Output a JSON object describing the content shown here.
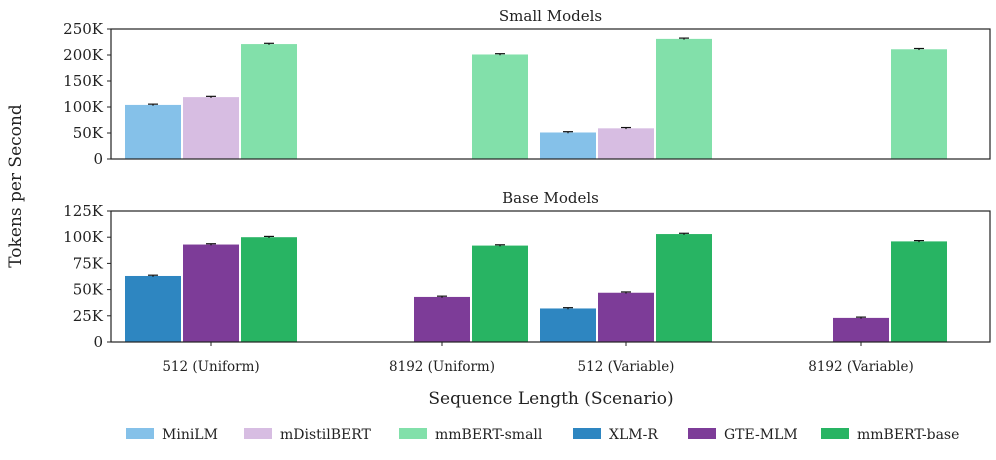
{
  "chart_data": {
    "type": "bar",
    "ylabel": "Tokens per Second",
    "xlabel": "Sequence Length (Scenario)",
    "categories": [
      "512 (Uniform)",
      "8192 (Uniform)",
      "512 (Variable)",
      "8192 (Variable)"
    ],
    "legend": [
      {
        "name": "MiniLM",
        "color": "#85c1e9"
      },
      {
        "name": "mDistilBERT",
        "color": "#d7bde2"
      },
      {
        "name": "mmBERT-small",
        "color": "#82e0aa"
      },
      {
        "name": "XLM-R",
        "color": "#2e86c1"
      },
      {
        "name": "GTE-MLM",
        "color": "#7d3c98"
      },
      {
        "name": "mmBERT-base",
        "color": "#28b463"
      }
    ],
    "panels": [
      {
        "title": "Small Models",
        "ylim": [
          0,
          250000
        ],
        "yticks": [
          0,
          50000,
          100000,
          150000,
          200000,
          250000
        ],
        "ytick_labels": [
          "0",
          "50K",
          "100K",
          "150K",
          "200K",
          "250K"
        ],
        "series": [
          {
            "name": "MiniLM",
            "color": "#85c1e9",
            "values": [
              104000,
              null,
              51000,
              null
            ]
          },
          {
            "name": "mDistilBERT",
            "color": "#d7bde2",
            "values": [
              119000,
              null,
              59000,
              null
            ]
          },
          {
            "name": "mmBERT-small",
            "color": "#82e0aa",
            "values": [
              221000,
              201000,
              231000,
              211000
            ]
          }
        ]
      },
      {
        "title": "Base Models",
        "ylim": [
          0,
          125000
        ],
        "yticks": [
          0,
          25000,
          50000,
          75000,
          100000,
          125000
        ],
        "ytick_labels": [
          "0",
          "25K",
          "50K",
          "75K",
          "100K",
          "125K"
        ],
        "series": [
          {
            "name": "XLM-R",
            "color": "#2e86c1",
            "values": [
              63000,
              null,
              32000,
              null
            ]
          },
          {
            "name": "GTE-MLM",
            "color": "#7d3c98",
            "values": [
              93000,
              43000,
              47000,
              23000
            ]
          },
          {
            "name": "mmBERT-base",
            "color": "#28b463",
            "values": [
              100000,
              92000,
              103000,
              96000
            ]
          }
        ]
      }
    ]
  }
}
